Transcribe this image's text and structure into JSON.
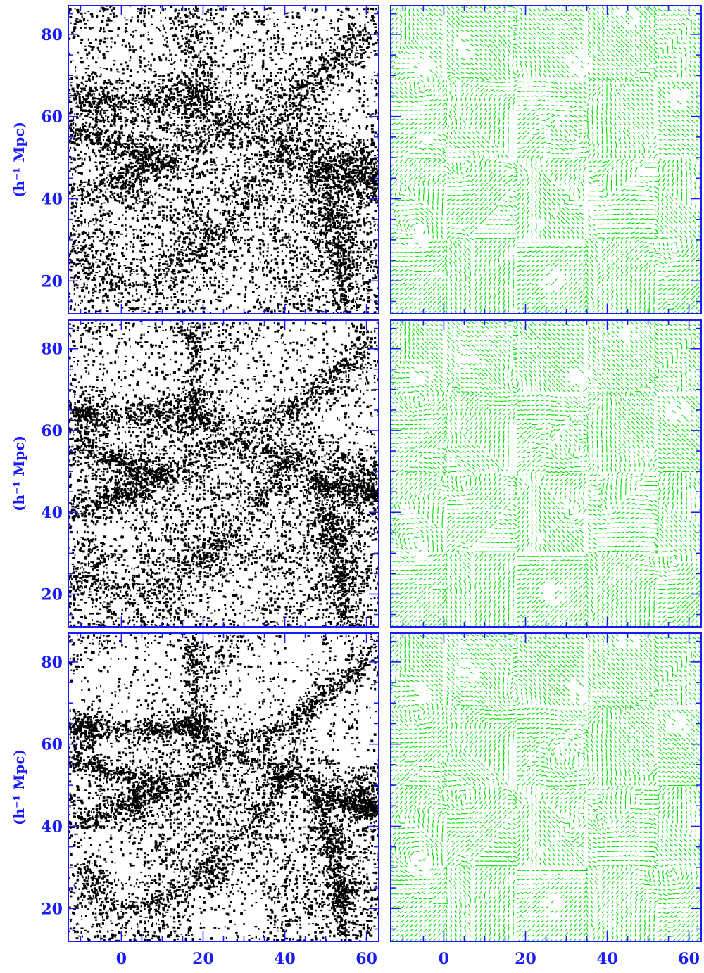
{
  "figure": {
    "colors": {
      "frame": "#1a1aff",
      "particles": "#000000",
      "velocity": "#00e000",
      "background": "#ffffff"
    },
    "ylabel": "(h⁻¹ Mpc)"
  },
  "chart_data": [
    {
      "row": 1,
      "column": "left",
      "type": "scatter",
      "content": "particle positions",
      "xlim": [
        -13,
        63
      ],
      "ylim": [
        12,
        87
      ],
      "xticks": [
        0,
        20,
        40,
        60
      ],
      "yticks": [
        20,
        40,
        60,
        80
      ],
      "show_x_tick_labels": false,
      "show_y_tick_labels": true,
      "ylabel": "(h⁻¹ Mpc)"
    },
    {
      "row": 1,
      "column": "right",
      "type": "vector-field",
      "content": "velocity field",
      "xlim": [
        -13,
        63
      ],
      "ylim": [
        12,
        87
      ],
      "xticks": [
        0,
        20,
        40,
        60
      ],
      "yticks": [
        20,
        40,
        60,
        80
      ],
      "show_x_tick_labels": false,
      "show_y_tick_labels": false
    },
    {
      "row": 2,
      "column": "left",
      "type": "scatter",
      "content": "particle positions",
      "xlim": [
        -13,
        63
      ],
      "ylim": [
        12,
        87
      ],
      "xticks": [
        0,
        20,
        40,
        60
      ],
      "yticks": [
        20,
        40,
        60,
        80
      ],
      "show_x_tick_labels": false,
      "show_y_tick_labels": true,
      "ylabel": "(h⁻¹ Mpc)"
    },
    {
      "row": 2,
      "column": "right",
      "type": "vector-field",
      "content": "velocity field",
      "xlim": [
        -13,
        63
      ],
      "ylim": [
        12,
        87
      ],
      "xticks": [
        0,
        20,
        40,
        60
      ],
      "yticks": [
        20,
        40,
        60,
        80
      ],
      "show_x_tick_labels": false,
      "show_y_tick_labels": false
    },
    {
      "row": 3,
      "column": "left",
      "type": "scatter",
      "content": "particle positions",
      "xlim": [
        -13,
        63
      ],
      "ylim": [
        12,
        87
      ],
      "xticks": [
        0,
        20,
        40,
        60
      ],
      "yticks": [
        20,
        40,
        60,
        80
      ],
      "show_x_tick_labels": true,
      "show_y_tick_labels": true,
      "ylabel": "(h⁻¹ Mpc)"
    },
    {
      "row": 3,
      "column": "right",
      "type": "vector-field",
      "content": "velocity field",
      "xlim": [
        -13,
        63
      ],
      "ylim": [
        12,
        87
      ],
      "xticks": [
        0,
        20,
        40,
        60
      ],
      "yticks": [
        20,
        40,
        60,
        80
      ],
      "show_x_tick_labels": true,
      "show_y_tick_labels": false
    }
  ],
  "structure": {
    "filaments": [
      [
        [
          16,
          87
        ],
        [
          17,
          80
        ],
        [
          18,
          72
        ],
        [
          19,
          65
        ],
        [
          24,
          59
        ],
        [
          31,
          55
        ],
        [
          40,
          53
        ],
        [
          48,
          51
        ],
        [
          58,
          50
        ],
        [
          63,
          49
        ]
      ],
      [
        [
          -13,
          65
        ],
        [
          -5,
          64
        ],
        [
          4,
          64
        ],
        [
          12,
          64
        ],
        [
          19,
          65
        ]
      ],
      [
        [
          -13,
          40
        ],
        [
          -5,
          43
        ],
        [
          3,
          46
        ],
        [
          10,
          49
        ],
        [
          18,
          52
        ],
        [
          24,
          58
        ]
      ],
      [
        [
          -13,
          24
        ],
        [
          -4,
          22
        ],
        [
          5,
          20
        ],
        [
          13,
          24
        ],
        [
          20,
          30
        ],
        [
          27,
          36
        ],
        [
          33,
          42
        ],
        [
          38,
          48
        ],
        [
          40,
          53
        ]
      ],
      [
        [
          28,
          59
        ],
        [
          36,
          63
        ],
        [
          43,
          67
        ],
        [
          49,
          71
        ],
        [
          55,
          76
        ],
        [
          61,
          82
        ]
      ],
      [
        [
          46,
          51
        ],
        [
          49,
          43
        ],
        [
          51,
          36
        ],
        [
          53,
          28
        ],
        [
          54,
          20
        ],
        [
          55,
          12
        ]
      ],
      [
        [
          48,
          47
        ],
        [
          54,
          46
        ],
        [
          60,
          45
        ],
        [
          63,
          44
        ]
      ],
      [
        [
          -13,
          57
        ],
        [
          -7,
          55
        ],
        [
          0,
          53
        ],
        [
          6,
          51
        ],
        [
          10,
          49
        ]
      ]
    ],
    "clusters": [
      [
        17,
        64
      ],
      [
        -9,
        64
      ],
      [
        54,
        25
      ],
      [
        52,
        36
      ],
      [
        -8,
        28
      ],
      [
        58,
        46
      ],
      [
        22,
        29
      ],
      [
        40,
        53
      ],
      [
        3,
        46
      ]
    ],
    "void_centers": [
      [
        -5,
        73
      ],
      [
        5,
        77
      ],
      [
        33,
        73
      ],
      [
        -6,
        30
      ],
      [
        26,
        20
      ],
      [
        45,
        85
      ],
      [
        57,
        65
      ]
    ],
    "flow_vortices": [
      [
        -6,
        67
      ],
      [
        17,
        71
      ],
      [
        32,
        54
      ],
      [
        -6,
        33
      ],
      [
        56,
        27
      ],
      [
        40,
        40
      ],
      [
        5,
        46
      ]
    ]
  }
}
